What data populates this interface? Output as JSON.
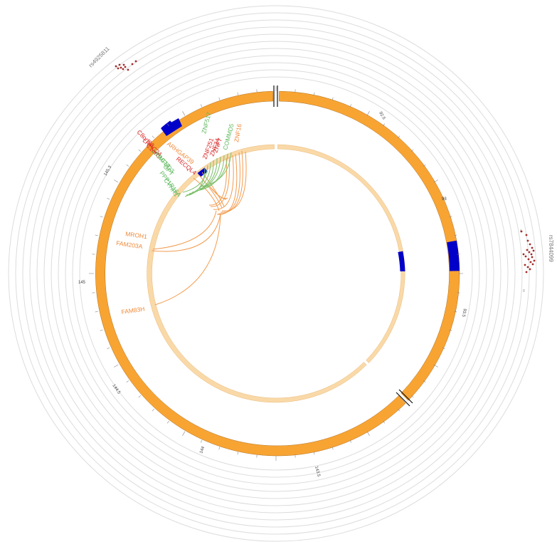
{
  "colors": {
    "outer_band": "#f8a433",
    "outer_band_stroke": "#b07020",
    "inner_band": "#fad9a8",
    "inner_band_stroke": "#e8b977",
    "highlight": "#0000c8",
    "ring": "#dcdcdc",
    "link_orange": "#f39b4e",
    "link_green": "#7cc06a",
    "snp_dot": "#a52a2a",
    "label_red": "#d72222",
    "label_orange": "#f08a3a",
    "label_green": "#5cb85c"
  },
  "snp_labels": [
    {
      "id": "snp-rs4925811",
      "text": "rs4925811"
    },
    {
      "id": "snp-rs7844099",
      "text": "rs7844099"
    }
  ],
  "small_labels": [
    {
      "id": "small-label-upper",
      "text": "8"
    },
    {
      "id": "small-label-lower",
      "text": "8"
    }
  ],
  "ticks": [
    {
      "id": "tick-145",
      "text": "145"
    },
    {
      "id": "tick-145-3",
      "text": "145.3"
    },
    {
      "id": "tick-145-5",
      "text": "145.5"
    },
    {
      "id": "tick-144",
      "text": "144"
    },
    {
      "id": "tick-144-5",
      "text": "144.5"
    },
    {
      "id": "tick-143-5",
      "text": "143.5"
    },
    {
      "id": "tick-93",
      "text": "93"
    },
    {
      "id": "tick-92-5",
      "text": "92.5"
    },
    {
      "id": "tick-93-5",
      "text": "93.5"
    }
  ],
  "genes": [
    {
      "id": "gene-znf16",
      "text": "ZNF16",
      "color": "label_orange"
    },
    {
      "id": "gene-commd5",
      "text": "COMMD5",
      "color": "label_green"
    },
    {
      "id": "gene-znf517",
      "text": "ZNF517",
      "color": "label_green"
    },
    {
      "id": "gene-znf7",
      "text": "ZNF7",
      "color": "label_red"
    },
    {
      "id": "gene-znf34",
      "text": "ZNF34",
      "color": "label_red"
    },
    {
      "id": "gene-znf251",
      "text": "ZNF251",
      "color": "label_red"
    },
    {
      "id": "gene-arhgap39",
      "text": "ARHGAP39",
      "color": "label_orange"
    },
    {
      "id": "gene-recql4",
      "text": "RECQL4",
      "color": "label_red"
    },
    {
      "id": "gene-lrrc24",
      "text": "LRRC24",
      "color": "label_red"
    },
    {
      "id": "gene-c8orf82",
      "text": "C8orf82",
      "color": "label_red"
    },
    {
      "id": "gene-c1orf1",
      "text": "C1orf1",
      "color": "label_red"
    },
    {
      "id": "gene-lrrc14",
      "text": "LRRC14",
      "color": "label_green"
    },
    {
      "id": "gene-mfsd3",
      "text": "MFSD3",
      "color": "label_green"
    },
    {
      "id": "gene-gpt",
      "text": "GPT",
      "color": "label_green"
    },
    {
      "id": "gene-ppp1r16a",
      "text": "PPP1R16A",
      "color": "label_green"
    },
    {
      "id": "gene-cyhr1",
      "text": "CYHR1",
      "color": "label_green"
    },
    {
      "id": "gene-mroh1",
      "text": "MROH1",
      "color": "label_orange"
    },
    {
      "id": "gene-fam203a",
      "text": "FAM203A",
      "color": "label_orange"
    },
    {
      "id": "gene-fam83h",
      "text": "FAM83H",
      "color": "label_orange"
    }
  ]
}
